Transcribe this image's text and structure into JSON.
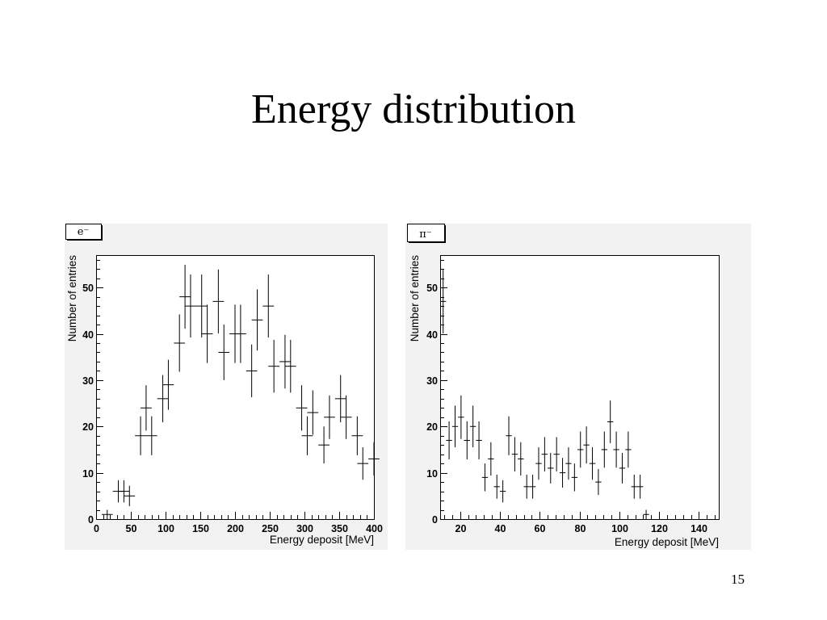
{
  "slide": {
    "title": "Energy distribution",
    "page_number": "15"
  },
  "chart_data": [
    {
      "type": "histogram",
      "label": "e⁻",
      "xlabel": "Energy deposit [MeV]",
      "ylabel": "Number of entries",
      "xlim": [
        0,
        400
      ],
      "ylim": [
        0,
        57
      ],
      "x_ticks": [
        0,
        50,
        100,
        150,
        200,
        250,
        300,
        350,
        400
      ],
      "y_ticks": [
        0,
        10,
        20,
        30,
        40,
        50
      ],
      "grid": false,
      "bin_width": 16,
      "bins": [
        {
          "x_low": 8,
          "value": 1,
          "error": 1.0
        },
        {
          "x_low": 24,
          "value": 6,
          "error": 2.4
        },
        {
          "x_low": 32,
          "value": 6,
          "error": 2.4
        },
        {
          "x_low": 40,
          "value": 5,
          "error": 2.2
        },
        {
          "x_low": 56,
          "value": 18,
          "error": 4.2
        },
        {
          "x_low": 64,
          "value": 24,
          "error": 4.9
        },
        {
          "x_low": 72,
          "value": 18,
          "error": 4.2
        },
        {
          "x_low": 88,
          "value": 26,
          "error": 5.1
        },
        {
          "x_low": 96,
          "value": 29,
          "error": 5.4
        },
        {
          "x_low": 112,
          "value": 38,
          "error": 6.2
        },
        {
          "x_low": 120,
          "value": 48,
          "error": 6.9
        },
        {
          "x_low": 128,
          "value": 46,
          "error": 6.8
        },
        {
          "x_low": 144,
          "value": 46,
          "error": 6.8
        },
        {
          "x_low": 152,
          "value": 40,
          "error": 6.3
        },
        {
          "x_low": 168,
          "value": 47,
          "error": 6.9
        },
        {
          "x_low": 176,
          "value": 36,
          "error": 6.0
        },
        {
          "x_low": 192,
          "value": 40,
          "error": 6.3
        },
        {
          "x_low": 200,
          "value": 40,
          "error": 6.3
        },
        {
          "x_low": 216,
          "value": 32,
          "error": 5.7
        },
        {
          "x_low": 224,
          "value": 43,
          "error": 6.6
        },
        {
          "x_low": 240,
          "value": 46,
          "error": 6.8
        },
        {
          "x_low": 248,
          "value": 33,
          "error": 5.7
        },
        {
          "x_low": 264,
          "value": 34,
          "error": 5.8
        },
        {
          "x_low": 272,
          "value": 33,
          "error": 5.7
        },
        {
          "x_low": 288,
          "value": 24,
          "error": 4.9
        },
        {
          "x_low": 296,
          "value": 18,
          "error": 4.2
        },
        {
          "x_low": 304,
          "value": 23,
          "error": 4.8
        },
        {
          "x_low": 320,
          "value": 16,
          "error": 4.0
        },
        {
          "x_low": 328,
          "value": 22,
          "error": 4.7
        },
        {
          "x_low": 344,
          "value": 26,
          "error": 5.1
        },
        {
          "x_low": 352,
          "value": 22,
          "error": 4.7
        },
        {
          "x_low": 368,
          "value": 18,
          "error": 4.2
        },
        {
          "x_low": 376,
          "value": 12,
          "error": 3.5
        },
        {
          "x_low": 392,
          "value": 13,
          "error": 3.6
        }
      ]
    },
    {
      "type": "histogram",
      "label": "π⁻",
      "xlabel": "Energy deposit [MeV]",
      "ylabel": "Number of entries",
      "xlim": [
        10,
        150
      ],
      "ylim": [
        0,
        57
      ],
      "x_ticks": [
        20,
        40,
        60,
        80,
        100,
        120,
        140
      ],
      "y_ticks": [
        0,
        10,
        20,
        30,
        40,
        50
      ],
      "grid": false,
      "bin_width": 3,
      "bins": [
        {
          "x_low": 10,
          "value": 47,
          "error": 6.9
        },
        {
          "x_low": 13,
          "value": 17,
          "error": 4.1
        },
        {
          "x_low": 16,
          "value": 20,
          "error": 4.5
        },
        {
          "x_low": 19,
          "value": 22,
          "error": 4.7
        },
        {
          "x_low": 22,
          "value": 17,
          "error": 4.1
        },
        {
          "x_low": 25,
          "value": 20,
          "error": 4.5
        },
        {
          "x_low": 28,
          "value": 17,
          "error": 4.1
        },
        {
          "x_low": 31,
          "value": 9,
          "error": 3.0
        },
        {
          "x_low": 34,
          "value": 13,
          "error": 3.6
        },
        {
          "x_low": 37,
          "value": 7,
          "error": 2.6
        },
        {
          "x_low": 40,
          "value": 6,
          "error": 2.4
        },
        {
          "x_low": 43,
          "value": 18,
          "error": 4.2
        },
        {
          "x_low": 46,
          "value": 14,
          "error": 3.7
        },
        {
          "x_low": 49,
          "value": 13,
          "error": 3.6
        },
        {
          "x_low": 52,
          "value": 7,
          "error": 2.6
        },
        {
          "x_low": 55,
          "value": 7,
          "error": 2.6
        },
        {
          "x_low": 58,
          "value": 12,
          "error": 3.5
        },
        {
          "x_low": 61,
          "value": 14,
          "error": 3.7
        },
        {
          "x_low": 64,
          "value": 11,
          "error": 3.3
        },
        {
          "x_low": 67,
          "value": 14,
          "error": 3.7
        },
        {
          "x_low": 70,
          "value": 10,
          "error": 3.2
        },
        {
          "x_low": 73,
          "value": 12,
          "error": 3.5
        },
        {
          "x_low": 76,
          "value": 9,
          "error": 3.0
        },
        {
          "x_low": 79,
          "value": 15,
          "error": 3.9
        },
        {
          "x_low": 82,
          "value": 16,
          "error": 4.0
        },
        {
          "x_low": 85,
          "value": 12,
          "error": 3.5
        },
        {
          "x_low": 88,
          "value": 8,
          "error": 2.8
        },
        {
          "x_low": 91,
          "value": 15,
          "error": 3.9
        },
        {
          "x_low": 94,
          "value": 21,
          "error": 4.6
        },
        {
          "x_low": 97,
          "value": 15,
          "error": 3.9
        },
        {
          "x_low": 100,
          "value": 11,
          "error": 3.3
        },
        {
          "x_low": 103,
          "value": 15,
          "error": 3.9
        },
        {
          "x_low": 106,
          "value": 7,
          "error": 2.6
        },
        {
          "x_low": 109,
          "value": 7,
          "error": 2.6
        },
        {
          "x_low": 112,
          "value": 1,
          "error": 1.0
        }
      ]
    }
  ]
}
